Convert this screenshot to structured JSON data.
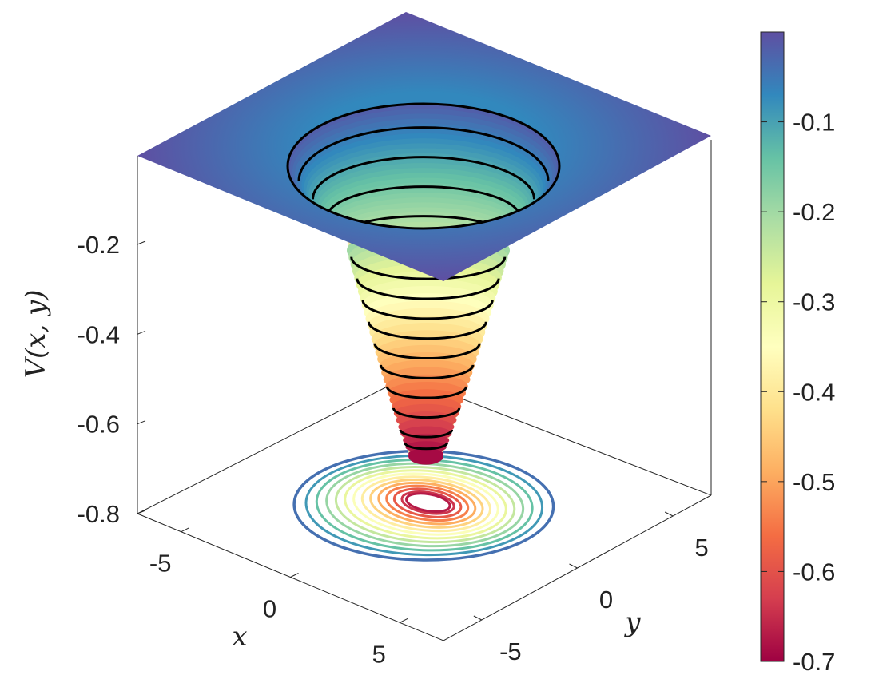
{
  "chart_data": {
    "type": "surface",
    "title": "",
    "xlabel": "x",
    "ylabel": "y",
    "zlabel": "V(x, y)",
    "xlim": [
      -7,
      7
    ],
    "ylim": [
      -7,
      7
    ],
    "zlim": [
      -0.8,
      0
    ],
    "x_ticks": [
      "-5",
      "0",
      "5"
    ],
    "y_ticks": [
      "-5",
      "0",
      "5"
    ],
    "z_ticks": [
      "-0.2",
      "-0.4",
      "-0.6",
      "-0.8"
    ],
    "z_tick_values": [
      -0.2,
      -0.4,
      -0.6,
      -0.8
    ],
    "surface_min": -0.69,
    "surface_plateau": 0,
    "contour_levels": [
      -0.04,
      -0.09,
      -0.14,
      -0.19,
      -0.24,
      -0.29,
      -0.34,
      -0.39,
      -0.44,
      -0.49,
      -0.54,
      -0.59,
      -0.64,
      -0.67
    ],
    "colormap": "spectral",
    "colorbar": {
      "ticks": [
        "-0.1",
        "-0.2",
        "-0.3",
        "-0.4",
        "-0.5",
        "-0.6",
        "-0.7"
      ],
      "tick_values": [
        -0.1,
        -0.2,
        -0.3,
        -0.4,
        -0.5,
        -0.6,
        -0.7
      ],
      "range": [
        -0.7,
        0
      ]
    },
    "grid": false,
    "box": true
  }
}
